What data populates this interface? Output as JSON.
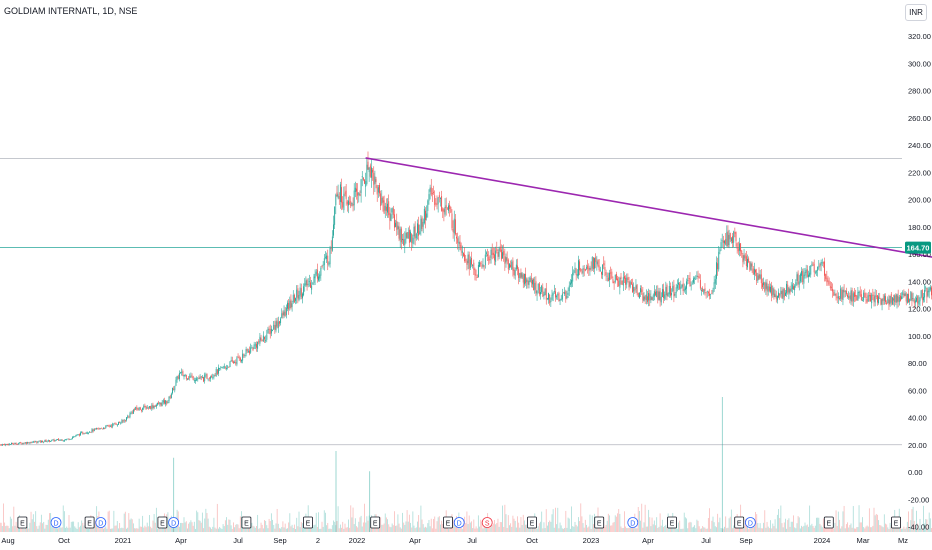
{
  "header": {
    "symbol": "GOLDIAM INTERNATL, 1D, NSE",
    "currency": "INR"
  },
  "chart_data": {
    "type": "candlestick",
    "price_axis": {
      "ticks": [
        "320.00",
        "300.00",
        "280.00",
        "260.00",
        "240.00",
        "220.00",
        "200.00",
        "180.00",
        "160.00",
        "140.00",
        "120.00",
        "100.00",
        "80.00",
        "60.00",
        "40.00",
        "20.00",
        "0.00",
        "-20.00",
        "-40.00"
      ],
      "ylim": [
        -40,
        320
      ]
    },
    "last_price": {
      "label": "164.70",
      "value": 164.7,
      "color": "#089981"
    },
    "time_axis": {
      "labels": [
        "Aug",
        "Oct",
        "2021",
        "Apr",
        "Jul",
        "Sep",
        "2",
        "2022",
        "Apr",
        "Jul",
        "Oct",
        "2023",
        "Apr",
        "Jul",
        "Sep",
        "2024",
        "Mar",
        "Mz"
      ]
    },
    "horizontal_levels": [
      {
        "value": 230,
        "color": "#b2b5be"
      },
      {
        "value": 164.7,
        "color": "#26a69a"
      },
      {
        "value": 20,
        "color": "#b2b5be"
      }
    ],
    "trendline": {
      "color": "#9c27b0",
      "start": {
        "date": "2021-10-20",
        "price": 230.5
      },
      "end": {
        "date": "2024-06-14",
        "price": 131
      }
    },
    "price_path": [
      [
        "2020-07-20",
        20
      ],
      [
        "2020-08-31",
        22
      ],
      [
        "2020-10-12",
        24
      ],
      [
        "2020-11-02",
        29
      ],
      [
        "2020-11-23",
        32
      ],
      [
        "2020-12-21",
        37
      ],
      [
        "2021-01-04",
        46
      ],
      [
        "2021-01-25",
        48
      ],
      [
        "2021-02-15",
        52
      ],
      [
        "2021-03-01",
        72
      ],
      [
        "2021-03-29",
        68
      ],
      [
        "2021-04-19",
        74
      ],
      [
        "2021-05-17",
        84
      ],
      [
        "2021-06-14",
        98
      ],
      [
        "2021-07-05",
        112
      ],
      [
        "2021-07-26",
        130
      ],
      [
        "2021-08-16",
        142
      ],
      [
        "2021-09-06",
        160
      ],
      [
        "2021-09-13",
        210
      ],
      [
        "2021-09-27",
        195
      ],
      [
        "2021-10-11",
        205
      ],
      [
        "2021-10-25",
        226
      ],
      [
        "2021-11-08",
        200
      ],
      [
        "2021-11-22",
        188
      ],
      [
        "2021-12-06",
        170
      ],
      [
        "2021-12-27",
        178
      ],
      [
        "2022-01-10",
        205
      ],
      [
        "2022-01-31",
        192
      ],
      [
        "2022-02-21",
        160
      ],
      [
        "2022-03-07",
        145
      ],
      [
        "2022-03-21",
        158
      ],
      [
        "2022-04-04",
        162
      ],
      [
        "2022-04-25",
        148
      ],
      [
        "2022-05-16",
        138
      ],
      [
        "2022-06-06",
        128
      ],
      [
        "2022-06-27",
        130
      ],
      [
        "2022-07-11",
        150
      ],
      [
        "2022-08-01",
        154
      ],
      [
        "2022-08-22",
        142
      ],
      [
        "2022-09-12",
        140
      ],
      [
        "2022-10-03",
        128
      ],
      [
        "2022-10-24",
        130
      ],
      [
        "2022-11-14",
        134
      ],
      [
        "2022-12-05",
        142
      ],
      [
        "2022-12-26",
        132
      ],
      [
        "2023-01-09",
        170
      ],
      [
        "2023-01-23",
        172
      ],
      [
        "2023-02-06",
        156
      ],
      [
        "2023-02-27",
        140
      ],
      [
        "2023-03-20",
        128
      ],
      [
        "2023-04-10",
        140
      ],
      [
        "2023-05-01",
        150
      ],
      [
        "2023-05-15",
        150
      ],
      [
        "2023-05-29",
        132
      ],
      [
        "2023-06-19",
        129
      ],
      [
        "2023-07-10",
        128
      ],
      [
        "2023-07-31",
        126
      ],
      [
        "2023-08-21",
        128
      ],
      [
        "2023-09-11",
        128
      ],
      [
        "2023-09-25",
        134
      ],
      [
        "2023-10-16",
        126
      ],
      [
        "2023-10-30",
        140
      ],
      [
        "2023-11-06",
        160
      ],
      [
        "2023-11-08",
        164.7
      ]
    ],
    "events": [
      {
        "date": "2020-08-17",
        "letter": "E"
      },
      {
        "date": "2020-09-28",
        "letter": "D"
      },
      {
        "date": "2020-11-09",
        "letter": "E"
      },
      {
        "date": "2020-11-23",
        "letter": "D"
      },
      {
        "date": "2021-02-08",
        "letter": "E"
      },
      {
        "date": "2021-02-22",
        "letter": "D"
      },
      {
        "date": "2021-05-24",
        "letter": "E"
      },
      {
        "date": "2021-08-09",
        "letter": "E"
      },
      {
        "date": "2021-11-01",
        "letter": "E"
      },
      {
        "date": "2022-01-31",
        "letter": "E"
      },
      {
        "date": "2022-02-14",
        "letter": "D"
      },
      {
        "date": "2022-03-21",
        "letter": "S"
      },
      {
        "date": "2022-05-16",
        "letter": "E"
      },
      {
        "date": "2022-08-08",
        "letter": "E"
      },
      {
        "date": "2022-09-19",
        "letter": "D"
      },
      {
        "date": "2022-11-07",
        "letter": "E"
      },
      {
        "date": "2023-01-30",
        "letter": "E"
      },
      {
        "date": "2023-02-13",
        "letter": "D"
      },
      {
        "date": "2023-05-22",
        "letter": "E"
      },
      {
        "date": "2023-08-14",
        "letter": "E"
      },
      {
        "date": "2023-10-30",
        "letter": "E"
      },
      {
        "date": "2023-11-13",
        "letter": "D"
      },
      {
        "date": "2024-02-05",
        "letter": "E"
      }
    ],
    "volume_spikes": [
      {
        "date": "2021-02-22",
        "rel": 0.55
      },
      {
        "date": "2021-09-13",
        "rel": 0.6
      },
      {
        "date": "2021-10-25",
        "rel": 0.45
      },
      {
        "date": "2023-01-09",
        "rel": 1.0
      },
      {
        "date": "2023-11-08",
        "rel": 0.8
      }
    ],
    "colors": {
      "up": "#26a69a",
      "down": "#ef5350",
      "event_earnings": "#131722",
      "event_dividend": "#2962ff",
      "event_split": "#f23645",
      "event_future": "#e040fb"
    }
  }
}
